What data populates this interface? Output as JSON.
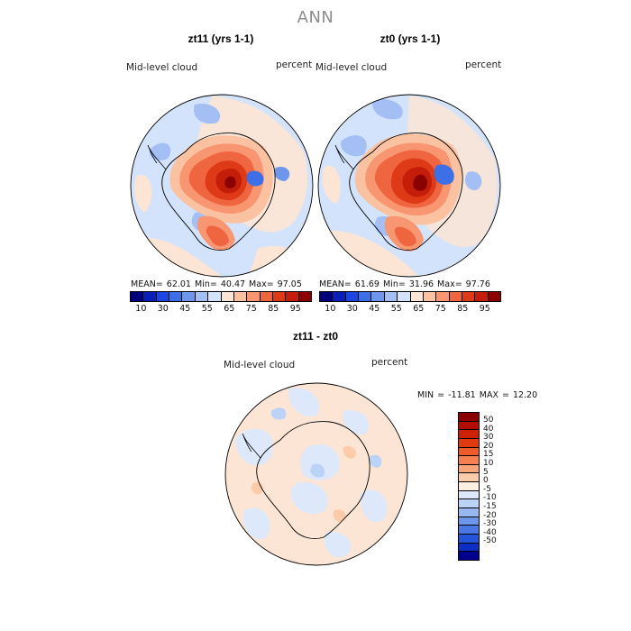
{
  "title": "ANN",
  "panel1": {
    "title": "zt11 (yrs 1-1)",
    "left_label": "Mid-level cloud",
    "right_label": "percent",
    "stats": "MEAN=   62.01   Min=   40.47   Max=   97.05"
  },
  "panel2": {
    "title": "zt0 (yrs 1-1)",
    "left_label": "Mid-level cloud",
    "right_label": "percent",
    "stats": "MEAN=   61.69   Min=   31.96   Max=   97.76"
  },
  "panel3": {
    "title": "zt11 - zt0",
    "left_label": "Mid-level cloud",
    "right_label": "percent",
    "stats": "MIN = -11.81  MAX =   12.20"
  },
  "colorbar_top": {
    "colors": [
      "#00007f",
      "#0a1fb8",
      "#1d45e0",
      "#3e6fe6",
      "#6e97ec",
      "#a3bff4",
      "#d2e3fb",
      "#fde5d5",
      "#fbc2a2",
      "#f89672",
      "#ef6540",
      "#de3a17",
      "#c41e0a",
      "#8b0000"
    ],
    "tick_labels": [
      "10",
      "30",
      "45",
      "55",
      "65",
      "75",
      "85",
      "95"
    ]
  },
  "colorbar_diff": {
    "colors": [
      "#8b0000",
      "#b30d00",
      "#cc2200",
      "#e03a10",
      "#ef5a2a",
      "#f68050",
      "#f9a57a",
      "#fcccaa",
      "#fdeee2",
      "#dde9fb",
      "#bcd3f8",
      "#98b8f2",
      "#6e97ec",
      "#4a77e4",
      "#2454d8",
      "#0b2fc4",
      "#00008f"
    ],
    "tick_labels": [
      "50",
      "40",
      "30",
      "20",
      "15",
      "10",
      "5",
      "0",
      "-5",
      "-10",
      "-15",
      "-20",
      "-30",
      "-40",
      "-50"
    ]
  },
  "colors": {
    "ocean_background": "#d2e3fb",
    "warm_light": "#fde5d5",
    "cool_mid": "#a3bff4",
    "high_core": "#c41e0a",
    "coastline": "#000000"
  }
}
